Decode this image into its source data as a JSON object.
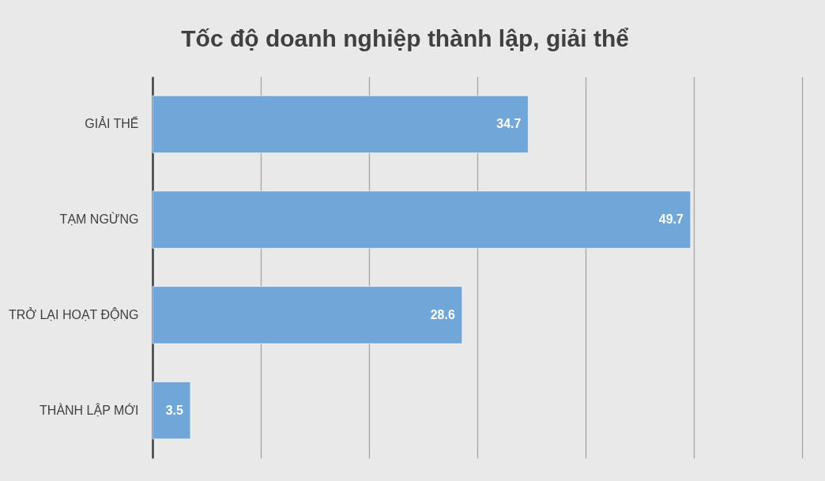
{
  "chart_data": {
    "type": "bar",
    "orientation": "horizontal",
    "title": "Tốc độ doanh nghiệp thành lập, giải thể",
    "categories": [
      "GIẢI THỂ",
      "TẠM NGỪNG",
      "TRỞ LẠI HOẠT ĐỘNG",
      "THÀNH LẬP MỚI"
    ],
    "values": [
      34.7,
      49.7,
      28.6,
      3.5
    ],
    "color": "#70a6d8",
    "data_labels": true,
    "xlim": [
      0,
      60
    ],
    "xticks": [
      {
        "value": 0,
        "label": null
      },
      {
        "value": 10,
        "label": null
      },
      {
        "value": 20,
        "label": null
      },
      {
        "value": 30,
        "label": null
      },
      {
        "value": 40,
        "label": null
      },
      {
        "value": 50,
        "label": null
      },
      {
        "value": 60,
        "label": null
      }
    ],
    "grid": "x",
    "tick_labels": "y"
  }
}
